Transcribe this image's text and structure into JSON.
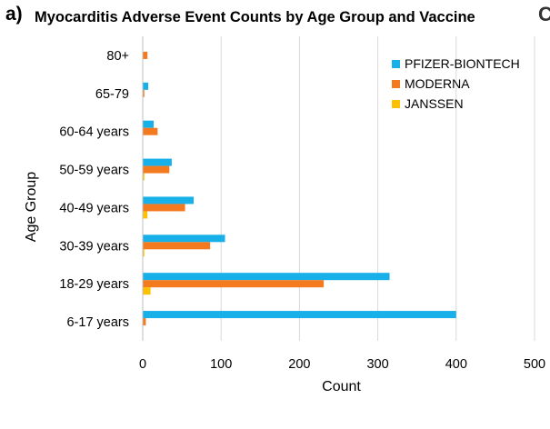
{
  "panel_label": "a)",
  "corner_glyph": "C",
  "chart_data": {
    "type": "bar",
    "orientation": "horizontal",
    "title": "Myocarditis Adverse Event Counts by Age Group and Vaccine",
    "xlabel": "Count",
    "ylabel": "Age Group",
    "xlim": [
      0,
      500
    ],
    "xticks": [
      0,
      100,
      200,
      300,
      400,
      500
    ],
    "grid": "vertical",
    "legend_position": "top-right",
    "categories": [
      "80+",
      "65-79",
      "60-64 years",
      "50-59 years",
      "40-49 years",
      "30-39 years",
      "18-29 years",
      "6-17 years"
    ],
    "series": [
      {
        "name": "PFIZER-BIONTECH",
        "color": "#17b0e8",
        "values": [
          0,
          7,
          14,
          37,
          65,
          105,
          315,
          400
        ]
      },
      {
        "name": "MODERNA",
        "color": "#f47a20",
        "values": [
          6,
          2,
          19,
          34,
          54,
          86,
          231,
          4
        ]
      },
      {
        "name": "JANSSEN",
        "color": "#ffc000",
        "values": [
          0,
          0,
          0,
          2,
          6,
          2,
          10,
          0
        ]
      }
    ]
  }
}
